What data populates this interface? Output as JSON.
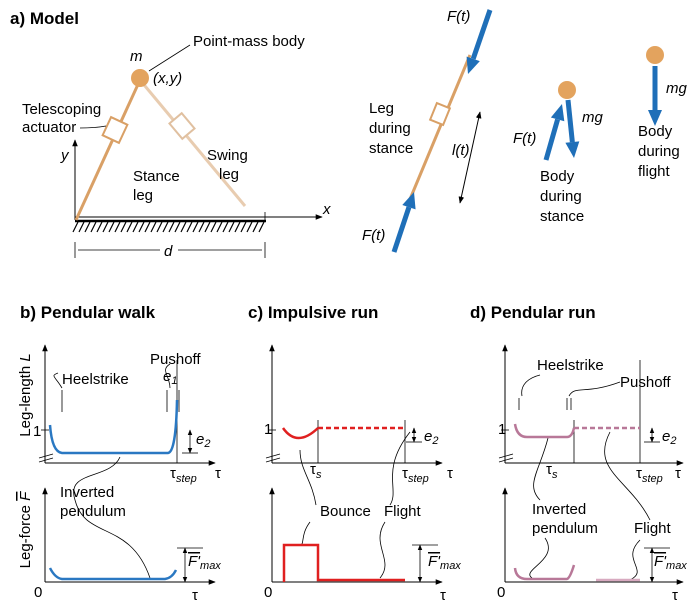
{
  "panel_a": {
    "title": "a) Model",
    "labels": [
      "m",
      "Point-mass body",
      "(x,y)",
      "Telescoping",
      "actuator",
      "Stance",
      "leg",
      "Swing",
      "leg",
      "y",
      "x",
      "d",
      "F(t)",
      "F(t)",
      "Leg",
      "during",
      "stance",
      "l(t)",
      "F(t)",
      "mg",
      "Body",
      "during",
      "stance",
      "mg",
      "Body",
      "during",
      "flight"
    ]
  },
  "panel_b": {
    "title": "b) Pendular walk",
    "length_axis": [
      "Leg-length",
      "L"
    ],
    "force_axis": [
      "Leg-force",
      "F"
    ],
    "labels": [
      "Heelstrike",
      "Pushoff",
      "e",
      "1",
      "e",
      "2",
      "1",
      "τ",
      "step",
      "τ",
      "Inverted",
      "pendulum",
      "0",
      "τ",
      "F'",
      "max"
    ]
  },
  "panel_c": {
    "title": "c) Impulsive run",
    "labels": [
      "1",
      "e",
      "2",
      "τ",
      "s",
      "τ",
      "step",
      "τ",
      "Bounce",
      "Flight",
      "0",
      "τ",
      "F'",
      "max"
    ]
  },
  "panel_d": {
    "title": "d) Pendular run",
    "labels": [
      "Heelstrike",
      "Pushoff",
      "1",
      "e",
      "2",
      "τ",
      "s",
      "τ",
      "step",
      "τ",
      "Inverted",
      "pendulum",
      "Flight",
      "0",
      "τ",
      "F'",
      "max"
    ]
  }
}
